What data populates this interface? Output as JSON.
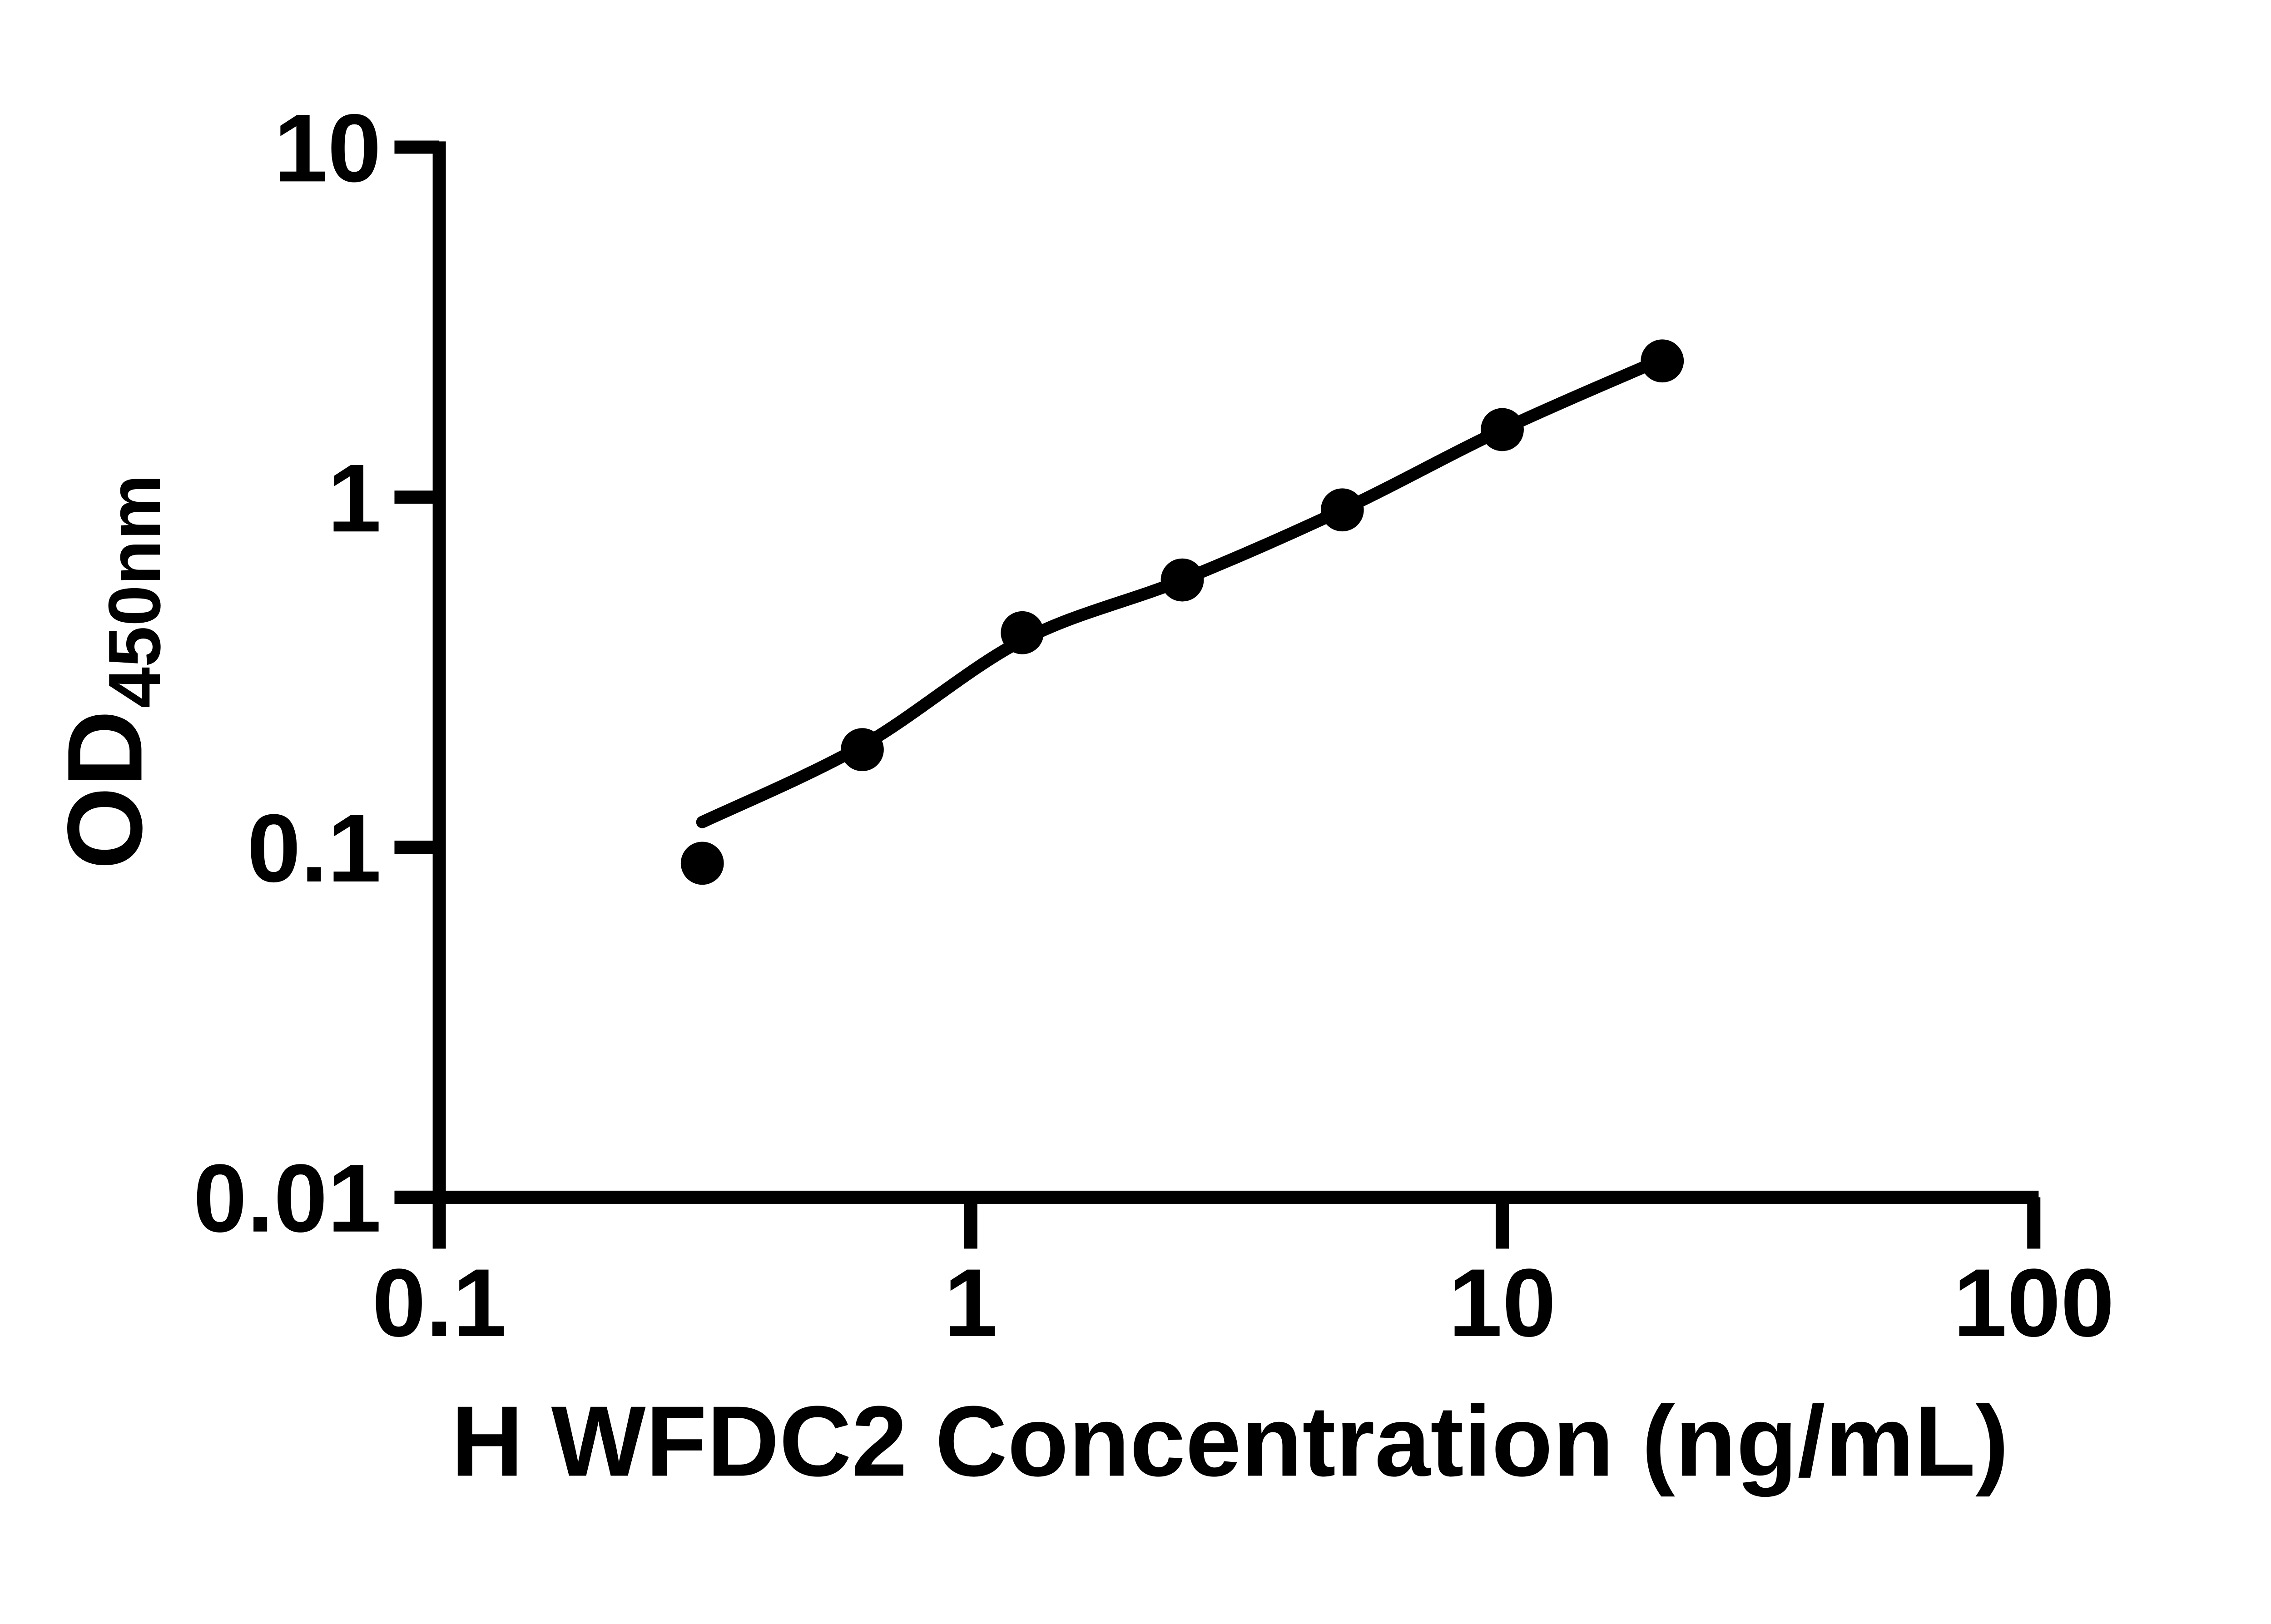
{
  "figure": {
    "background_color": "#ffffff",
    "foreground_color": "#000000"
  },
  "chart_data": {
    "type": "scatter",
    "title": "",
    "xlabel": "H WFDC2 Concentration (ng/mL)",
    "ylabel": "OD",
    "ylabel_subscript": "450nm",
    "x_scale": "log",
    "y_scale": "log",
    "xlim": [
      0.1,
      100
    ],
    "ylim": [
      0.01,
      10
    ],
    "grid": false,
    "legend": null,
    "x_ticks": [
      {
        "value": 0.1,
        "label": "0.1"
      },
      {
        "value": 1,
        "label": "1"
      },
      {
        "value": 10,
        "label": "10"
      },
      {
        "value": 100,
        "label": "100"
      }
    ],
    "y_ticks": [
      {
        "value": 10,
        "label": "10"
      },
      {
        "value": 1,
        "label": "1"
      },
      {
        "value": 0.1,
        "label": "0.1"
      },
      {
        "value": 0.01,
        "label": "0.01"
      }
    ],
    "series": [
      {
        "name": "standard-curve-points",
        "marker": "circle",
        "color": "#000000",
        "points": [
          [
            0.3125,
            0.09
          ],
          [
            0.625,
            0.19
          ],
          [
            1.25,
            0.41
          ],
          [
            2.5,
            0.58
          ],
          [
            5,
            0.92
          ],
          [
            10,
            1.56
          ],
          [
            20,
            2.45
          ]
        ]
      }
    ],
    "fit_line": {
      "name": "fitted-standard-curve",
      "color": "#000000",
      "points": [
        [
          0.3125,
          0.118
        ],
        [
          0.625,
          0.195
        ],
        [
          1.25,
          0.39
        ],
        [
          2.5,
          0.58
        ],
        [
          5,
          0.92
        ],
        [
          10,
          1.56
        ],
        [
          20,
          2.48
        ]
      ]
    }
  }
}
